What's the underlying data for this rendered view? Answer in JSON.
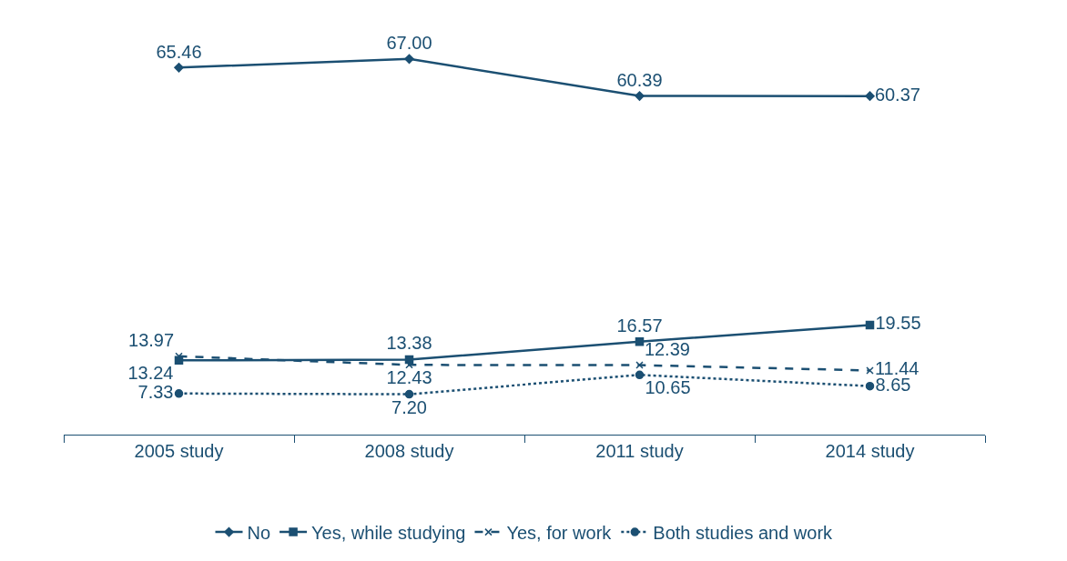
{
  "chart_data": {
    "type": "line",
    "categories": [
      "2005 study",
      "2008 study",
      "2011 study",
      "2014 study"
    ],
    "series": [
      {
        "name": "No",
        "color": "#1b4f72",
        "values": [
          65.46,
          67.0,
          60.39,
          60.37
        ],
        "value_labels": [
          "65.46",
          "67.00",
          "60.39",
          "60.37"
        ],
        "marker": "diamond",
        "line_style": "solid"
      },
      {
        "name": "Yes, while studying",
        "color": "#1b4f72",
        "values": [
          13.24,
          13.38,
          16.57,
          19.55
        ],
        "value_labels": [
          "13.24",
          "13.38",
          "16.57",
          "19.55"
        ],
        "marker": "square",
        "line_style": "solid"
      },
      {
        "name": "Yes, for work",
        "color": "#1b4f72",
        "values": [
          13.97,
          12.43,
          12.39,
          11.44
        ],
        "value_labels": [
          "13.97",
          "12.43",
          "12.39",
          "11.44"
        ],
        "marker": "cross",
        "line_style": "dashed"
      },
      {
        "name": "Both studies and work",
        "color": "#1b4f72",
        "values": [
          7.33,
          7.2,
          10.65,
          8.65
        ],
        "value_labels": [
          "7.33",
          "7.20",
          "10.65",
          "8.65"
        ],
        "marker": "circle",
        "line_style": "dotted"
      }
    ],
    "legend": "bottom"
  }
}
